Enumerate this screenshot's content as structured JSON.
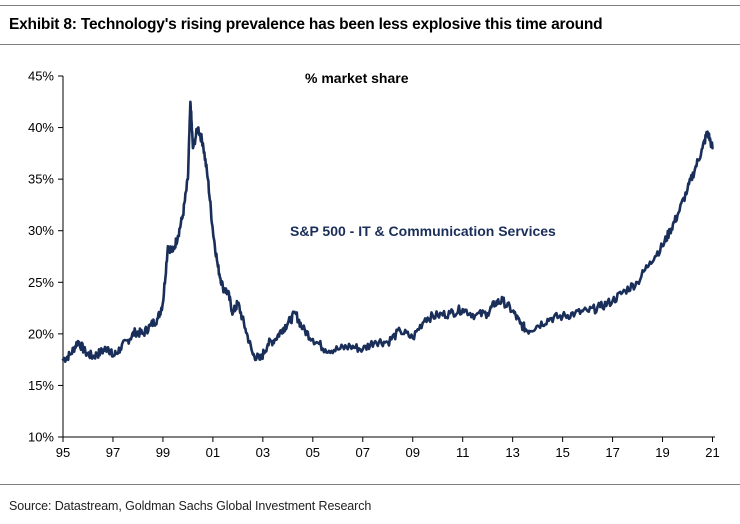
{
  "header": {
    "title": "Exhibit 8: Technology's rising prevalence has been less explosive this time around"
  },
  "footer": {
    "source": "Source: Datastream, Goldman Sachs Global Investment Research"
  },
  "colors": {
    "line": "#1a2e5a",
    "rule": "#7f7f7f",
    "label": "#1a2e5a"
  },
  "chart_data": {
    "type": "line",
    "title": "Exhibit 8: Technology's rising prevalence has been less explosive this time around",
    "ylabel": "% market share",
    "xlabel": "",
    "ylim": [
      10,
      45
    ],
    "xlim": [
      1995,
      2021.1
    ],
    "grid": false,
    "x_tick_labels": [
      "95",
      "97",
      "99",
      "01",
      "03",
      "05",
      "07",
      "09",
      "11",
      "13",
      "15",
      "17",
      "19",
      "21"
    ],
    "x_tick_years": [
      1995,
      1997,
      1999,
      2001,
      2003,
      2005,
      2007,
      2009,
      2011,
      2013,
      2015,
      2017,
      2019,
      2021
    ],
    "y_tick_labels": [
      "10%",
      "15%",
      "20%",
      "25%",
      "30%",
      "35%",
      "40%",
      "45%"
    ],
    "y_tick_values": [
      10,
      15,
      20,
      25,
      30,
      35,
      40,
      45
    ],
    "annotations": [
      "% market share"
    ],
    "series": [
      {
        "name": "S&P 500 - IT & Communication Services",
        "x": [
          1995.0,
          1995.3,
          1995.6,
          1995.9,
          1996.2,
          1996.5,
          1996.8,
          1997.0,
          1997.3,
          1997.6,
          1997.9,
          1998.2,
          1998.5,
          1998.8,
          1999.0,
          1999.2,
          1999.4,
          1999.6,
          1999.8,
          2000.0,
          2000.1,
          2000.2,
          2000.4,
          2000.6,
          2000.8,
          2001.0,
          2001.2,
          2001.4,
          2001.6,
          2001.8,
          2002.0,
          2002.3,
          2002.6,
          2002.9,
          2003.2,
          2003.5,
          2003.8,
          2004.0,
          2004.3,
          2004.6,
          2005.0,
          2005.5,
          2006.0,
          2006.5,
          2007.0,
          2007.5,
          2008.0,
          2008.5,
          2009.0,
          2009.5,
          2010.0,
          2010.5,
          2011.0,
          2011.5,
          2012.0,
          2012.3,
          2012.6,
          2013.0,
          2013.3,
          2013.6,
          2014.0,
          2014.5,
          2015.0,
          2015.5,
          2016.0,
          2016.5,
          2017.0,
          2017.5,
          2018.0,
          2018.5,
          2019.0,
          2019.3,
          2019.6,
          2020.0,
          2020.3,
          2020.6,
          2020.8,
          2021.0
        ],
        "values": [
          17.5,
          18.0,
          19.3,
          18.2,
          17.8,
          18.2,
          18.7,
          17.8,
          18.6,
          19.4,
          20.2,
          20.0,
          20.8,
          21.5,
          23.0,
          28.5,
          28.0,
          29.5,
          31.5,
          35.0,
          42.5,
          38.0,
          40.0,
          38.5,
          35.0,
          30.0,
          26.5,
          24.5,
          24.0,
          22.0,
          23.0,
          20.5,
          18.0,
          17.5,
          19.0,
          19.5,
          20.5,
          21.0,
          22.0,
          20.5,
          19.5,
          18.5,
          18.5,
          18.8,
          18.5,
          19.3,
          19.2,
          20.3,
          19.6,
          21.5,
          21.8,
          22.0,
          22.4,
          21.8,
          22.0,
          23.0,
          23.2,
          22.2,
          21.0,
          20.3,
          20.8,
          21.5,
          21.7,
          22.0,
          22.2,
          22.6,
          23.2,
          24.2,
          25.0,
          27.0,
          28.5,
          30.0,
          31.5,
          34.0,
          36.0,
          38.0,
          39.6,
          38.0
        ]
      }
    ]
  }
}
